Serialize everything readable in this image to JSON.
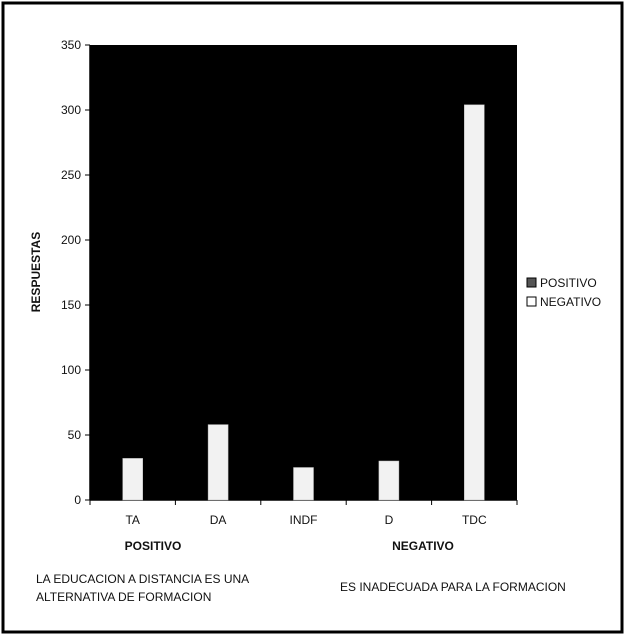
{
  "chart_data": {
    "type": "bar",
    "ylabel": "RESPUESTAS",
    "ylim": [
      0,
      350
    ],
    "yticks": [
      0,
      50,
      100,
      150,
      200,
      250,
      300,
      350
    ],
    "categories": [
      "TA",
      "DA",
      "INDF",
      "D",
      "TDC"
    ],
    "series": [
      {
        "name": "POSITIVO",
        "values": [
          0,
          0,
          0,
          0,
          0
        ]
      },
      {
        "name": "NEGATIVO",
        "values": [
          32,
          58,
          25,
          30,
          304
        ]
      }
    ],
    "groups": [
      "POSITIVO",
      "NEGATIVO"
    ],
    "legend_position": "right",
    "grid": false,
    "colors": {
      "plot_background": "#000000",
      "bar": "#f2f2f2",
      "frame": "#000000"
    },
    "annotations": {
      "left": [
        "LA EDUCACION A DISTANCIA ES UNA",
        "ALTERNATIVA DE FORMACION"
      ],
      "right": "ES INADECUADA PARA LA FORMACION"
    }
  }
}
